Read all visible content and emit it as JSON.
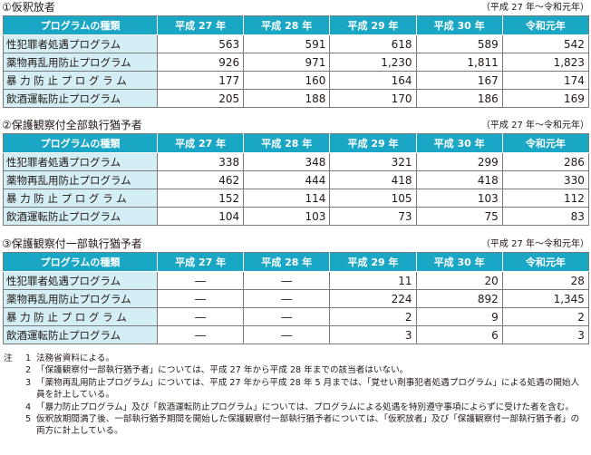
{
  "tables": [
    {
      "title": "①仮釈放者",
      "period": "（平成 27 年～令和元年）",
      "headers": [
        "プログラムの種類",
        "平成 27 年",
        "平成 28 年",
        "平成 29 年",
        "平成 30 年",
        "令和元年"
      ],
      "rows": [
        {
          "label": "性犯罪者処遇プログラム",
          "values": [
            "563",
            "591",
            "618",
            "589",
            "542"
          ]
        },
        {
          "label": "薬物再乱用防止プログラム",
          "values": [
            "926",
            "971",
            "1,230",
            "1,811",
            "1,823"
          ]
        },
        {
          "label": "暴 力 防 止 プ ロ グ ラ ム",
          "values": [
            "177",
            "160",
            "164",
            "167",
            "174"
          ]
        },
        {
          "label": "飲酒運転防止プログラム",
          "values": [
            "205",
            "188",
            "170",
            "186",
            "169"
          ]
        }
      ]
    },
    {
      "title": "②保護観察付全部執行猶予者",
      "period": "（平成 27 年～令和元年）",
      "headers": [
        "プログラムの種類",
        "平成 27 年",
        "平成 28 年",
        "平成 29 年",
        "平成 30 年",
        "令和元年"
      ],
      "rows": [
        {
          "label": "性犯罪者処遇プログラム",
          "values": [
            "338",
            "348",
            "321",
            "299",
            "286"
          ]
        },
        {
          "label": "薬物再乱用防止プログラム",
          "values": [
            "462",
            "444",
            "418",
            "418",
            "330"
          ]
        },
        {
          "label": "暴 力 防 止 プ ロ グ ラ ム",
          "values": [
            "152",
            "114",
            "105",
            "103",
            "112"
          ]
        },
        {
          "label": "飲酒運転防止プログラム",
          "values": [
            "104",
            "103",
            "73",
            "75",
            "83"
          ]
        }
      ]
    },
    {
      "title": "③保護観察付一部執行猶予者",
      "period": "（平成 27 年～令和元年）",
      "headers": [
        "プログラムの種類",
        "平成 27 年",
        "平成 28 年",
        "平成 29 年",
        "平成 30 年",
        "令和元年"
      ],
      "rows": [
        {
          "label": "性犯罪者処遇プログラム",
          "values": [
            "―",
            "―",
            "11",
            "20",
            "28"
          ]
        },
        {
          "label": "薬物再乱用防止プログラム",
          "values": [
            "―",
            "―",
            "224",
            "892",
            "1,345"
          ]
        },
        {
          "label": "暴 力 防 止 プ ロ グ ラ ム",
          "values": [
            "―",
            "―",
            "2",
            "9",
            "2"
          ]
        },
        {
          "label": "飲酒運転防止プログラム",
          "values": [
            "―",
            "―",
            "3",
            "6",
            "3"
          ]
        }
      ]
    }
  ],
  "notes": {
    "lead": "注",
    "items": [
      {
        "num": "1",
        "text": "法務省資料による。"
      },
      {
        "num": "2",
        "text": "「保護観察付一部執行猶予者」については、平成 27 年から平成 28 年までの該当者はいない。"
      },
      {
        "num": "3",
        "text": "「薬物再乱用防止プログラム」については、平成 27 年から平成 28 年 5 月までは、「覚せい剤事犯者処遇プログラム」による処遇の開始人員を計上している。"
      },
      {
        "num": "4",
        "text": "「暴力防止プログラム」及び「飲酒運転防止プログラム」については、プログラムによる処遇を特別遵守事項によらずに受けた者を含む。"
      },
      {
        "num": "5",
        "text": "仮釈放期間満了後、一部執行猶予期間を開始した保護観察付一部執行猶予者については、「仮釈放者」及び「保護観察付一部執行猶予者」の両方に計上している。"
      }
    ]
  },
  "colors": {
    "header_bg": "#1aa7c6",
    "label_bg": "#d4eef5",
    "border": "#7a7a7a"
  }
}
